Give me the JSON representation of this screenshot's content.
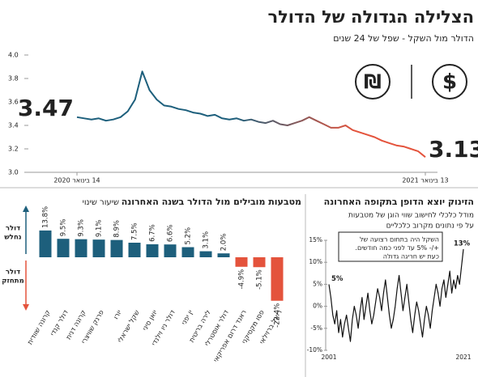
{
  "chart_data": [
    {
      "type": "line",
      "title": "הצלילה הגדולה של הדולר",
      "subtitle": "הדולר מול השקל - שפל של 24 שנים",
      "icons": [
        "₪",
        "$"
      ],
      "categories": [
        "14 בינואר 2020",
        null,
        null,
        null,
        null,
        null,
        null,
        null,
        null,
        null,
        null,
        null,
        null,
        null,
        null,
        null,
        null,
        null,
        null,
        null,
        null,
        null,
        null,
        null,
        null,
        null,
        null,
        null,
        null,
        null,
        null,
        null,
        null,
        null,
        null,
        null,
        null,
        null,
        null,
        null,
        null,
        null,
        null,
        null,
        null,
        null,
        null,
        null,
        "13 בינואר 2021"
      ],
      "values": [
        3.47,
        3.46,
        3.45,
        3.46,
        3.44,
        3.45,
        3.47,
        3.52,
        3.62,
        3.86,
        3.7,
        3.62,
        3.57,
        3.56,
        3.54,
        3.53,
        3.51,
        3.5,
        3.48,
        3.49,
        3.46,
        3.45,
        3.46,
        3.44,
        3.45,
        3.43,
        3.42,
        3.44,
        3.41,
        3.4,
        3.42,
        3.44,
        3.47,
        3.44,
        3.41,
        3.38,
        3.38,
        3.4,
        3.36,
        3.34,
        3.32,
        3.3,
        3.27,
        3.25,
        3.23,
        3.22,
        3.2,
        3.18,
        3.13
      ],
      "colors": [
        "#1d5f7c",
        "#e4533c"
      ],
      "ylim": [
        3.0,
        4.0
      ],
      "yticks": [
        {
          "value": 3.0,
          "label": "3.0"
        },
        3.2,
        3.4,
        3.6,
        3.8,
        {
          "value": 4.0,
          "label": "4.0"
        }
      ]
    },
    {
      "type": "bar",
      "title": "מטבעות מובילים מול הדולר בשנה האחרונה",
      "subtitle": "שיעור שינוי",
      "categories": [
        "קרונה שוודית",
        "דולר קנדי",
        "קרונה דנית",
        "פרנק שוויצרי",
        "יורו",
        "שקל ישראלי",
        "יואן סיני",
        "דולר ניו זילנדי",
        "ין יפני",
        "לירה בריטית",
        "דולר אוסטרלי",
        "ראנד דרום אפריקאי",
        "פסו מקסיקני",
        "ריאל ברזילאי"
      ],
      "values": [
        13.8,
        9.5,
        9.3,
        9.1,
        8.9,
        7.5,
        6.7,
        6.6,
        5.2,
        3.1,
        2.0,
        -4.9,
        -5.1,
        -22.4
      ],
      "value_labels": [
        "13.8%",
        "9.5%",
        "9.3%",
        "9.1%",
        "8.9%",
        "7.5%",
        "6.7%",
        "6.6%",
        "5.2%",
        "3.1%",
        "2.0%",
        "-4.9%",
        "-5.1%",
        "-22.4%"
      ],
      "colors": [
        "#1d5f7c",
        "#e4533c"
      ],
      "annotations": {
        "up": [
          "דולר",
          "נחלש"
        ],
        "down": [
          "דולר",
          "מתחזק"
        ]
      }
    },
    {
      "type": "line",
      "title": "הזינוק יוצא הדופן בתקופה האחרונה",
      "subtitle": [
        "מודל כלכלי לחישוב שווי הוגן של מטבעות",
        "על פי נתונים מקרוב כלכליים"
      ],
      "annotation": [
        "השקל היה בתחום רצועה של",
        "+/- 5% עד לפני כמה חודשים.",
        "כעת יש חריגה גדולה"
      ],
      "categories": [
        "2001",
        null,
        null,
        null,
        null,
        null,
        null,
        null,
        null,
        null,
        null,
        null,
        null,
        null,
        null,
        null,
        null,
        null,
        null,
        null,
        null,
        null,
        null,
        null,
        null,
        null,
        null,
        null,
        null,
        null,
        null,
        null,
        null,
        null,
        null,
        null,
        null,
        null,
        null,
        null,
        null,
        null,
        null,
        null,
        null,
        null,
        null,
        null,
        null,
        null,
        null,
        null,
        null,
        null,
        null,
        null,
        null,
        null,
        null,
        null,
        null,
        null,
        null,
        null,
        null,
        null,
        null,
        null,
        null,
        "2021"
      ],
      "values": [
        5,
        2,
        -2,
        -4,
        -1,
        -6,
        -3,
        -7,
        -4,
        -2,
        -5,
        -8,
        -3,
        0,
        -2,
        -5,
        -1,
        2,
        -3,
        0,
        3,
        -1,
        -4,
        -2,
        1,
        4,
        2,
        -1,
        3,
        6,
        2,
        -2,
        -5,
        -3,
        0,
        4,
        7,
        3,
        -1,
        2,
        5,
        1,
        -3,
        -6,
        -2,
        1,
        -1,
        -4,
        -7,
        -3,
        0,
        -2,
        -5,
        -1,
        2,
        5,
        3,
        0,
        4,
        6,
        2,
        5,
        8,
        3,
        6,
        4,
        7,
        5,
        9,
        13
      ],
      "value_labels": [
        "5%",
        null,
        null,
        null,
        null,
        null,
        null,
        null,
        null,
        null,
        null,
        null,
        null,
        null,
        null,
        null,
        null,
        null,
        null,
        null,
        null,
        null,
        null,
        null,
        null,
        null,
        null,
        null,
        null,
        null,
        null,
        null,
        null,
        null,
        null,
        null,
        null,
        null,
        null,
        null,
        null,
        null,
        null,
        null,
        null,
        null,
        null,
        null,
        null,
        null,
        null,
        null,
        null,
        null,
        null,
        null,
        null,
        null,
        null,
        null,
        null,
        null,
        null,
        null,
        null,
        null,
        null,
        null,
        null,
        "13%"
      ],
      "color": "#111111",
      "ylim": [
        -10,
        15
      ],
      "yticks": [
        {
          "value": -10,
          "label": "-10%"
        },
        {
          "value": -5,
          "label": "-5%"
        },
        {
          "value": 0,
          "label": "0%"
        },
        {
          "value": 5,
          "label": "5%"
        },
        {
          "value": 10,
          "label": "10%"
        },
        {
          "value": 15,
          "label": "15%"
        }
      ]
    }
  ]
}
